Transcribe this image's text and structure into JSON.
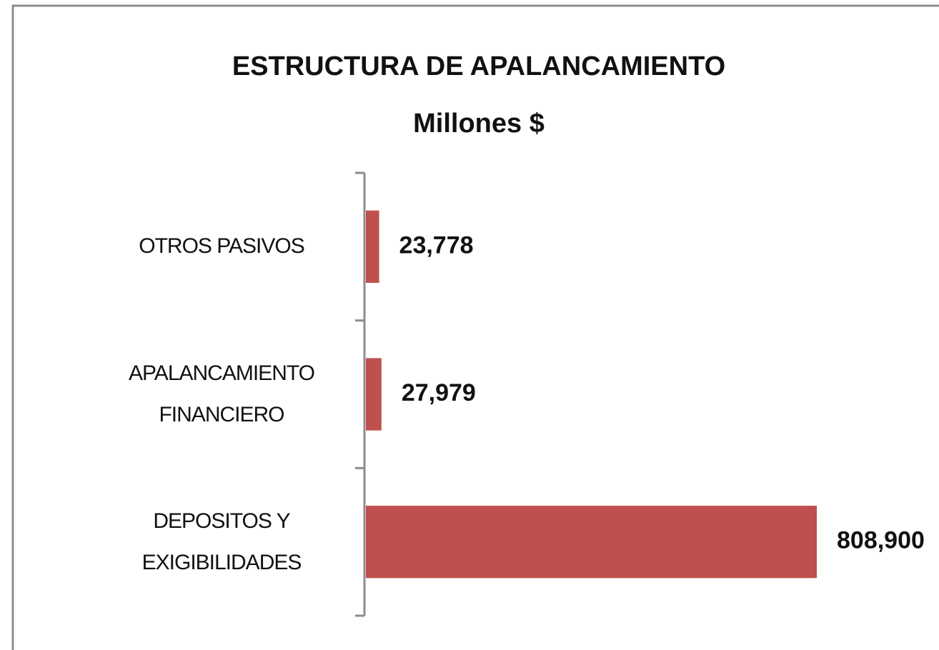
{
  "chart_data": {
    "type": "barh",
    "title": "ESTRUCTURA DE APALANCAMIENTO",
    "subtitle": "Millones $",
    "categories": [
      "OTROS PASIVOS",
      "APALANCAMIENTO FINANCIERO",
      "DEPOSITOS Y EXIGIBILIDADES"
    ],
    "values": [
      23778,
      27979,
      808900
    ],
    "value_labels": [
      "23,778",
      "27,979",
      "808,900"
    ],
    "color": "#c0504d"
  }
}
